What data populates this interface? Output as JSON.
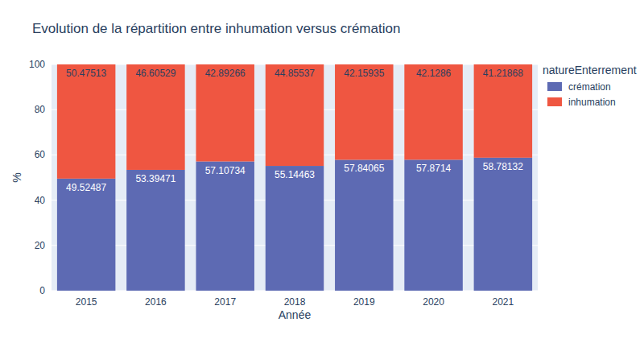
{
  "chart_data": {
    "type": "bar",
    "title": "Evolution de la répartition entre inhumation versus crémation",
    "x_label": "Année",
    "y_label": "%",
    "legend_title": "natureEnterrement",
    "categories": [
      "2015",
      "2016",
      "2017",
      "2018",
      "2019",
      "2020",
      "2021"
    ],
    "series": [
      {
        "name": "crémation",
        "color": "#5d6ab3",
        "values": [
          49.52487,
          53.39471,
          57.10734,
          55.14463,
          57.84065,
          57.8714,
          58.78132
        ]
      },
      {
        "name": "inhumation",
        "color": "#ef5641",
        "values": [
          50.47513,
          46.60529,
          42.89266,
          44.85537,
          42.15935,
          42.1286,
          41.21868
        ]
      }
    ],
    "ylim": [
      0,
      100
    ],
    "yticks": [
      0,
      20,
      40,
      60,
      80,
      100
    ],
    "grid": true,
    "stacked": true,
    "data_labels": true,
    "legend": "top-right"
  }
}
